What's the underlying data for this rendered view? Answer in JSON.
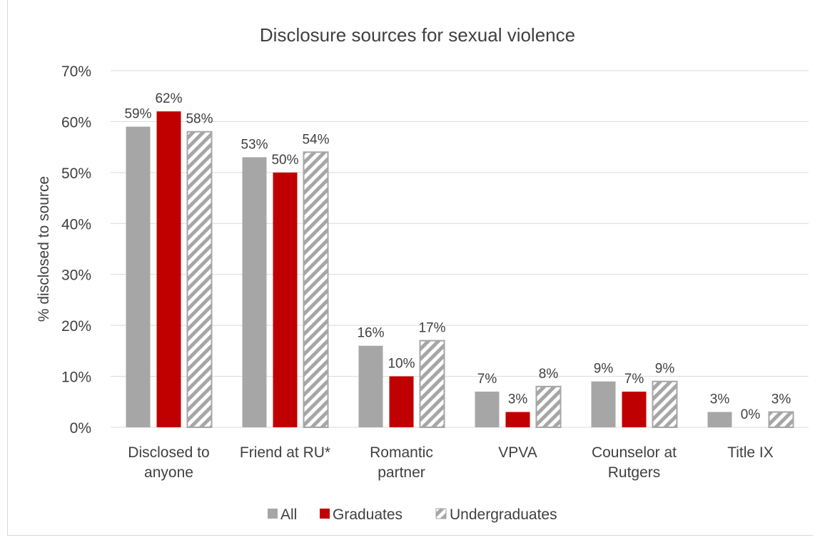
{
  "chart_data": {
    "type": "bar",
    "title": "Disclosure sources for sexual violence",
    "xlabel": "",
    "ylabel": "% disclosed to source",
    "ylim": [
      0,
      70
    ],
    "y_ticks": [
      0,
      10,
      20,
      30,
      40,
      50,
      60,
      70
    ],
    "y_tick_labels": [
      "0%",
      "10%",
      "20%",
      "30%",
      "40%",
      "50%",
      "60%",
      "70%"
    ],
    "grid": true,
    "legend_position": "bottom",
    "categories": [
      [
        "Disclosed to",
        "anyone"
      ],
      [
        "Friend at RU*"
      ],
      [
        "Romantic",
        "partner"
      ],
      [
        "VPVA"
      ],
      [
        "Counselor at",
        "Rutgers"
      ],
      [
        "Title IX"
      ]
    ],
    "series": [
      {
        "name": "All",
        "values": [
          59,
          53,
          16,
          7,
          9,
          3
        ],
        "labels": [
          "59%",
          "53%",
          "16%",
          "7%",
          "9%",
          "3%"
        ],
        "color": "#a6a6a6",
        "pattern": "solid"
      },
      {
        "name": "Graduates",
        "values": [
          62,
          50,
          10,
          3,
          7,
          0
        ],
        "labels": [
          "62%",
          "50%",
          "10%",
          "3%",
          "7%",
          "0%"
        ],
        "color": "#c00000",
        "pattern": "solid"
      },
      {
        "name": "Undergraduates",
        "values": [
          58,
          54,
          17,
          8,
          9,
          3
        ],
        "labels": [
          "58%",
          "54%",
          "17%",
          "8%",
          "9%",
          "3%"
        ],
        "color": "#a6a6a6",
        "pattern": "hatched"
      }
    ]
  }
}
